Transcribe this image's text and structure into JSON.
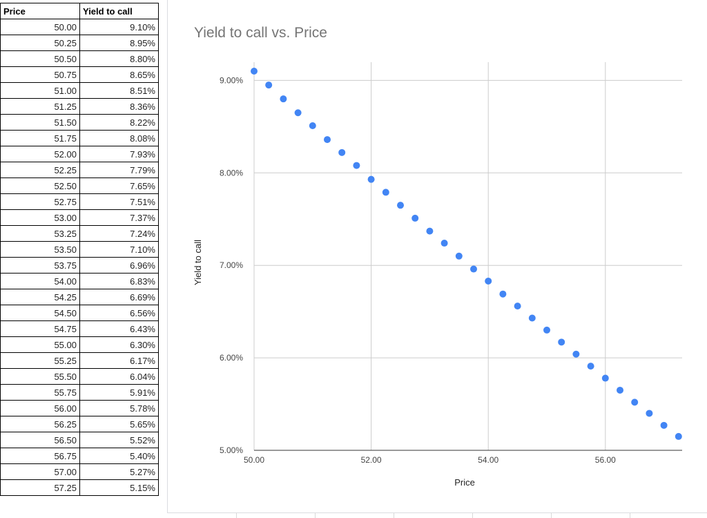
{
  "table": {
    "headers": [
      "Price",
      "Yield to call"
    ],
    "rows": [
      [
        "50.00",
        "9.10%"
      ],
      [
        "50.25",
        "8.95%"
      ],
      [
        "50.50",
        "8.80%"
      ],
      [
        "50.75",
        "8.65%"
      ],
      [
        "51.00",
        "8.51%"
      ],
      [
        "51.25",
        "8.36%"
      ],
      [
        "51.50",
        "8.22%"
      ],
      [
        "51.75",
        "8.08%"
      ],
      [
        "52.00",
        "7.93%"
      ],
      [
        "52.25",
        "7.79%"
      ],
      [
        "52.50",
        "7.65%"
      ],
      [
        "52.75",
        "7.51%"
      ],
      [
        "53.00",
        "7.37%"
      ],
      [
        "53.25",
        "7.24%"
      ],
      [
        "53.50",
        "7.10%"
      ],
      [
        "53.75",
        "6.96%"
      ],
      [
        "54.00",
        "6.83%"
      ],
      [
        "54.25",
        "6.69%"
      ],
      [
        "54.50",
        "6.56%"
      ],
      [
        "54.75",
        "6.43%"
      ],
      [
        "55.00",
        "6.30%"
      ],
      [
        "55.25",
        "6.17%"
      ],
      [
        "55.50",
        "6.04%"
      ],
      [
        "55.75",
        "5.91%"
      ],
      [
        "56.00",
        "5.78%"
      ],
      [
        "56.25",
        "5.65%"
      ],
      [
        "56.50",
        "5.52%"
      ],
      [
        "56.75",
        "5.40%"
      ],
      [
        "57.00",
        "5.27%"
      ],
      [
        "57.25",
        "5.15%"
      ]
    ]
  },
  "chart_data": {
    "type": "scatter",
    "title": "Yield to call vs. Price",
    "xlabel": "Price",
    "ylabel": "Yield to call",
    "x": [
      50.0,
      50.25,
      50.5,
      50.75,
      51.0,
      51.25,
      51.5,
      51.75,
      52.0,
      52.25,
      52.5,
      52.75,
      53.0,
      53.25,
      53.5,
      53.75,
      54.0,
      54.25,
      54.5,
      54.75,
      55.0,
      55.25,
      55.5,
      55.75,
      56.0,
      56.25,
      56.5,
      56.75,
      57.0,
      57.25
    ],
    "y": [
      9.1,
      8.95,
      8.8,
      8.65,
      8.51,
      8.36,
      8.22,
      8.08,
      7.93,
      7.79,
      7.65,
      7.51,
      7.37,
      7.24,
      7.1,
      6.96,
      6.83,
      6.69,
      6.56,
      6.43,
      6.3,
      6.17,
      6.04,
      5.91,
      5.78,
      5.65,
      5.52,
      5.4,
      5.27,
      5.15
    ],
    "xlim": [
      50.0,
      57.3
    ],
    "ylim": [
      5.0,
      9.1
    ],
    "xticks": [
      "50.00",
      "52.00",
      "54.00",
      "56.00"
    ],
    "xtick_values": [
      50,
      52,
      54,
      56
    ],
    "yticks": [
      "9.00%",
      "8.00%",
      "7.00%",
      "6.00%",
      "5.00%"
    ],
    "ytick_values": [
      9,
      8,
      7,
      6,
      5
    ],
    "point_color": "#4285f4",
    "grid": true
  }
}
